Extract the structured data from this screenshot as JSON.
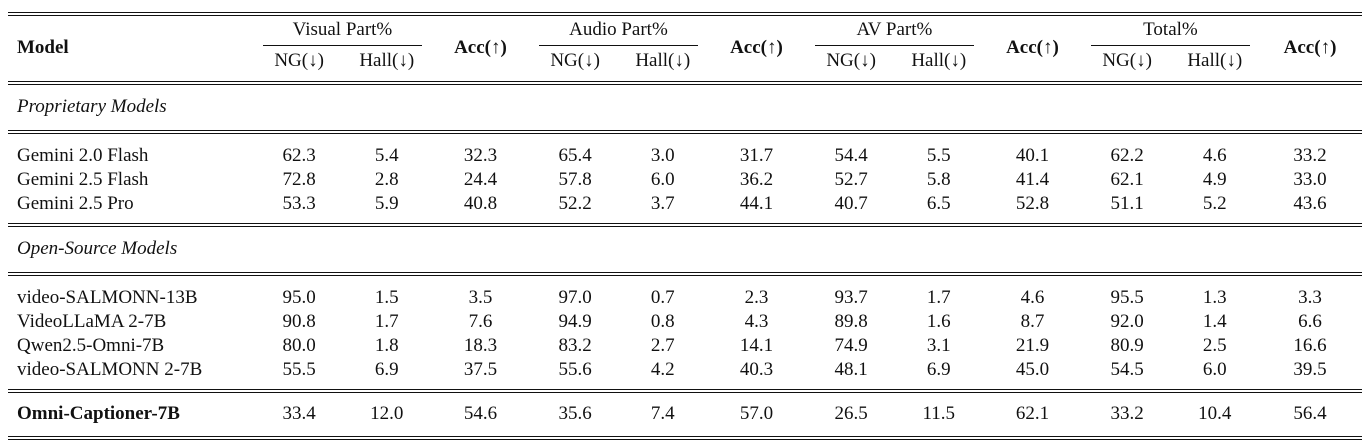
{
  "header": {
    "model": "Model",
    "groups": [
      "Visual Part%",
      "Audio Part%",
      "AV Part%",
      "Total%"
    ],
    "ng": "NG(↓)",
    "hall": "Hall(↓)",
    "acc": "Acc(↑)"
  },
  "sections": [
    {
      "title": "Proprietary Models",
      "rows": [
        {
          "model": "Gemini 2.0 Flash",
          "values": [
            "62.3",
            "5.4",
            "32.3",
            "65.4",
            "3.0",
            "31.7",
            "54.4",
            "5.5",
            "40.1",
            "62.2",
            "4.6",
            "33.2"
          ]
        },
        {
          "model": "Gemini 2.5 Flash",
          "values": [
            "72.8",
            "2.8",
            "24.4",
            "57.8",
            "6.0",
            "36.2",
            "52.7",
            "5.8",
            "41.4",
            "62.1",
            "4.9",
            "33.0"
          ]
        },
        {
          "model": "Gemini 2.5 Pro",
          "values": [
            "53.3",
            "5.9",
            "40.8",
            "52.2",
            "3.7",
            "44.1",
            "40.7",
            "6.5",
            "52.8",
            "51.1",
            "5.2",
            "43.6"
          ]
        }
      ]
    },
    {
      "title": "Open-Source Models",
      "rows": [
        {
          "model": "video-SALMONN-13B",
          "values": [
            "95.0",
            "1.5",
            "3.5",
            "97.0",
            "0.7",
            "2.3",
            "93.7",
            "1.7",
            "4.6",
            "95.5",
            "1.3",
            "3.3"
          ]
        },
        {
          "model": "VideoLLaMA 2-7B",
          "values": [
            "90.8",
            "1.7",
            "7.6",
            "94.9",
            "0.8",
            "4.3",
            "89.8",
            "1.6",
            "8.7",
            "92.0",
            "1.4",
            "6.6"
          ]
        },
        {
          "model": "Qwen2.5-Omni-7B",
          "values": [
            "80.0",
            "1.8",
            "18.3",
            "83.2",
            "2.7",
            "14.1",
            "74.9",
            "3.1",
            "21.9",
            "80.9",
            "2.5",
            "16.6"
          ]
        },
        {
          "model": "video-SALMONN 2-7B",
          "values": [
            "55.5",
            "6.9",
            "37.5",
            "55.6",
            "4.2",
            "40.3",
            "48.1",
            "6.9",
            "45.0",
            "54.5",
            "6.0",
            "39.5"
          ]
        }
      ]
    }
  ],
  "highlight": {
    "model": "Omni-Captioner-7B",
    "values": [
      "33.4",
      "12.0",
      "54.6",
      "35.6",
      "7.4",
      "57.0",
      "26.5",
      "11.5",
      "62.1",
      "33.2",
      "10.4",
      "56.4"
    ]
  }
}
